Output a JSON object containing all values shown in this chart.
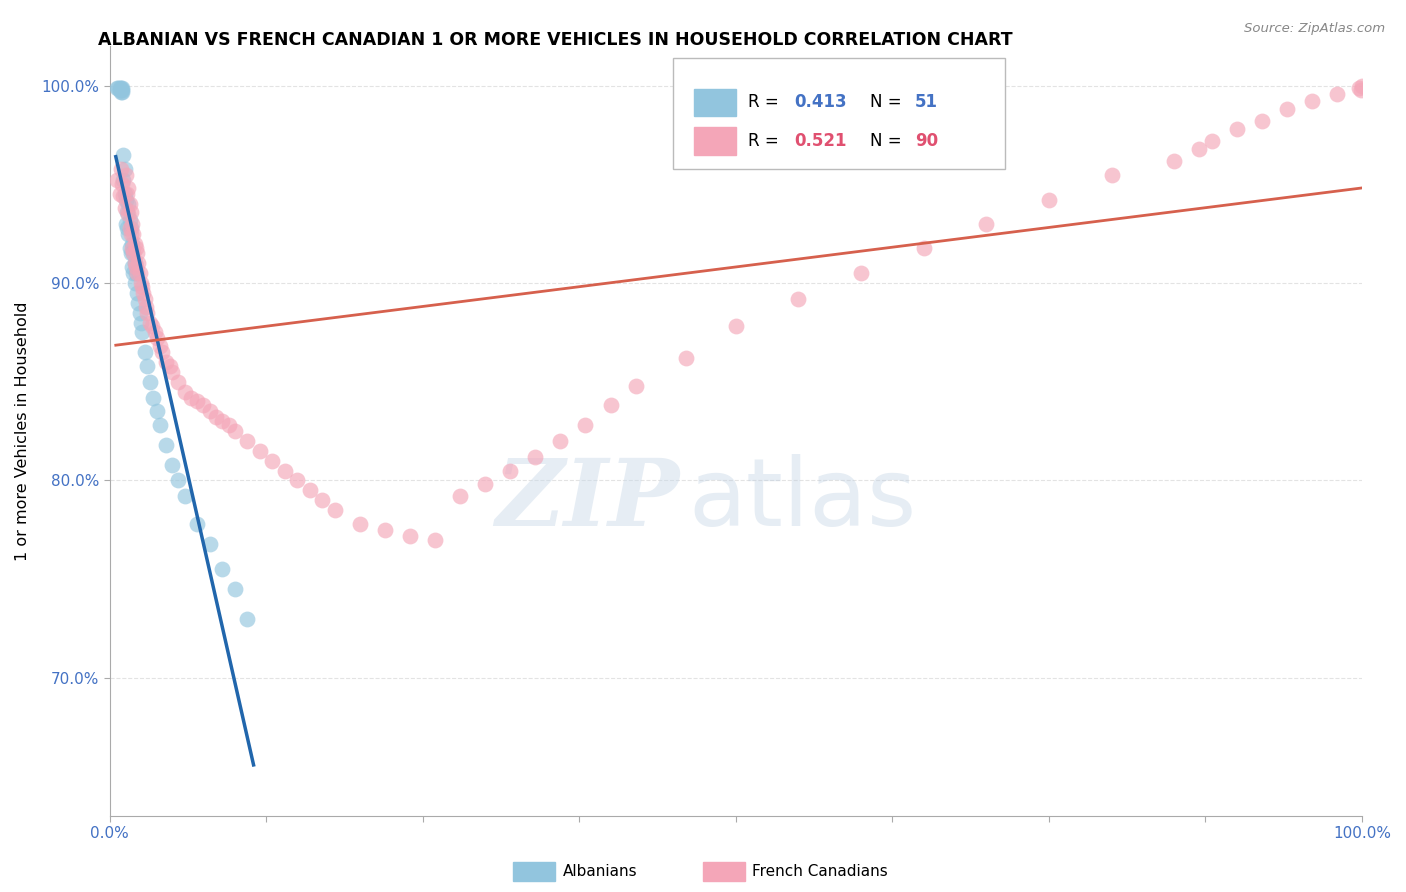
{
  "title": "ALBANIAN VS FRENCH CANADIAN 1 OR MORE VEHICLES IN HOUSEHOLD CORRELATION CHART",
  "source": "Source: ZipAtlas.com",
  "ylabel": "1 or more Vehicles in Household",
  "albanians_color": "#92c5de",
  "french_canadians_color": "#f4a6b8",
  "trendline_albanian_color": "#2166ac",
  "trendline_french_color": "#d6604d",
  "R_albanian": 0.413,
  "N_albanian": 51,
  "R_french": 0.521,
  "N_french": 90,
  "legend_R_N_color_alb": "#4472c4",
  "legend_R_N_color_fr": "#e05070",
  "watermark_zip_color": "#c8d8e8",
  "watermark_atlas_color": "#b8cce0",
  "grid_color": "#dddddd",
  "spine_color": "#aaaaaa",
  "tick_color": "#4472c4",
  "xlim": [
    0.0,
    1.0
  ],
  "ylim": [
    0.63,
    1.02
  ],
  "ytick_vals": [
    0.7,
    0.8,
    0.9,
    1.0
  ],
  "ytick_labels": [
    "70.0%",
    "80.0%",
    "90.0%",
    "100.0%"
  ],
  "alb_x": [
    0.006,
    0.007,
    0.008,
    0.008,
    0.009,
    0.009,
    0.009,
    0.01,
    0.01,
    0.01,
    0.011,
    0.011,
    0.012,
    0.012,
    0.013,
    0.013,
    0.014,
    0.014,
    0.015,
    0.015,
    0.016,
    0.016,
    0.017,
    0.017,
    0.018,
    0.018,
    0.019,
    0.019,
    0.02,
    0.02,
    0.021,
    0.022,
    0.023,
    0.024,
    0.025,
    0.026,
    0.028,
    0.03,
    0.032,
    0.035,
    0.038,
    0.04,
    0.045,
    0.05,
    0.055,
    0.06,
    0.07,
    0.08,
    0.09,
    0.1,
    0.11
  ],
  "alb_y": [
    0.999,
    0.999,
    0.999,
    0.998,
    0.999,
    0.998,
    0.997,
    0.999,
    0.998,
    0.997,
    0.965,
    0.952,
    0.958,
    0.945,
    0.942,
    0.93,
    0.936,
    0.928,
    0.94,
    0.925,
    0.932,
    0.918,
    0.928,
    0.915,
    0.92,
    0.908,
    0.915,
    0.905,
    0.91,
    0.9,
    0.905,
    0.895,
    0.89,
    0.885,
    0.88,
    0.875,
    0.865,
    0.858,
    0.85,
    0.842,
    0.835,
    0.828,
    0.818,
    0.808,
    0.8,
    0.792,
    0.778,
    0.768,
    0.755,
    0.745,
    0.73
  ],
  "fr_x": [
    0.006,
    0.008,
    0.009,
    0.01,
    0.011,
    0.012,
    0.013,
    0.014,
    0.015,
    0.015,
    0.016,
    0.016,
    0.017,
    0.017,
    0.018,
    0.018,
    0.019,
    0.019,
    0.02,
    0.02,
    0.021,
    0.021,
    0.022,
    0.022,
    0.023,
    0.024,
    0.025,
    0.026,
    0.027,
    0.028,
    0.029,
    0.03,
    0.032,
    0.034,
    0.036,
    0.038,
    0.04,
    0.042,
    0.045,
    0.048,
    0.05,
    0.055,
    0.06,
    0.065,
    0.07,
    0.075,
    0.08,
    0.085,
    0.09,
    0.095,
    0.1,
    0.11,
    0.12,
    0.13,
    0.14,
    0.15,
    0.16,
    0.17,
    0.18,
    0.2,
    0.22,
    0.24,
    0.26,
    0.28,
    0.3,
    0.32,
    0.34,
    0.36,
    0.38,
    0.4,
    0.42,
    0.46,
    0.5,
    0.55,
    0.6,
    0.65,
    0.7,
    0.75,
    0.8,
    0.85,
    0.87,
    0.88,
    0.9,
    0.92,
    0.94,
    0.96,
    0.98,
    0.998,
    0.999,
    1.0
  ],
  "fr_y": [
    0.952,
    0.945,
    0.958,
    0.95,
    0.944,
    0.938,
    0.955,
    0.945,
    0.948,
    0.935,
    0.94,
    0.928,
    0.936,
    0.925,
    0.93,
    0.918,
    0.925,
    0.915,
    0.92,
    0.91,
    0.918,
    0.908,
    0.915,
    0.905,
    0.91,
    0.905,
    0.9,
    0.898,
    0.895,
    0.892,
    0.888,
    0.885,
    0.88,
    0.878,
    0.875,
    0.872,
    0.868,
    0.865,
    0.86,
    0.858,
    0.855,
    0.85,
    0.845,
    0.842,
    0.84,
    0.838,
    0.835,
    0.832,
    0.83,
    0.828,
    0.825,
    0.82,
    0.815,
    0.81,
    0.805,
    0.8,
    0.795,
    0.79,
    0.785,
    0.778,
    0.775,
    0.772,
    0.77,
    0.792,
    0.798,
    0.805,
    0.812,
    0.82,
    0.828,
    0.838,
    0.848,
    0.862,
    0.878,
    0.892,
    0.905,
    0.918,
    0.93,
    0.942,
    0.955,
    0.962,
    0.968,
    0.972,
    0.978,
    0.982,
    0.988,
    0.992,
    0.996,
    0.999,
    0.998,
    1.0
  ]
}
